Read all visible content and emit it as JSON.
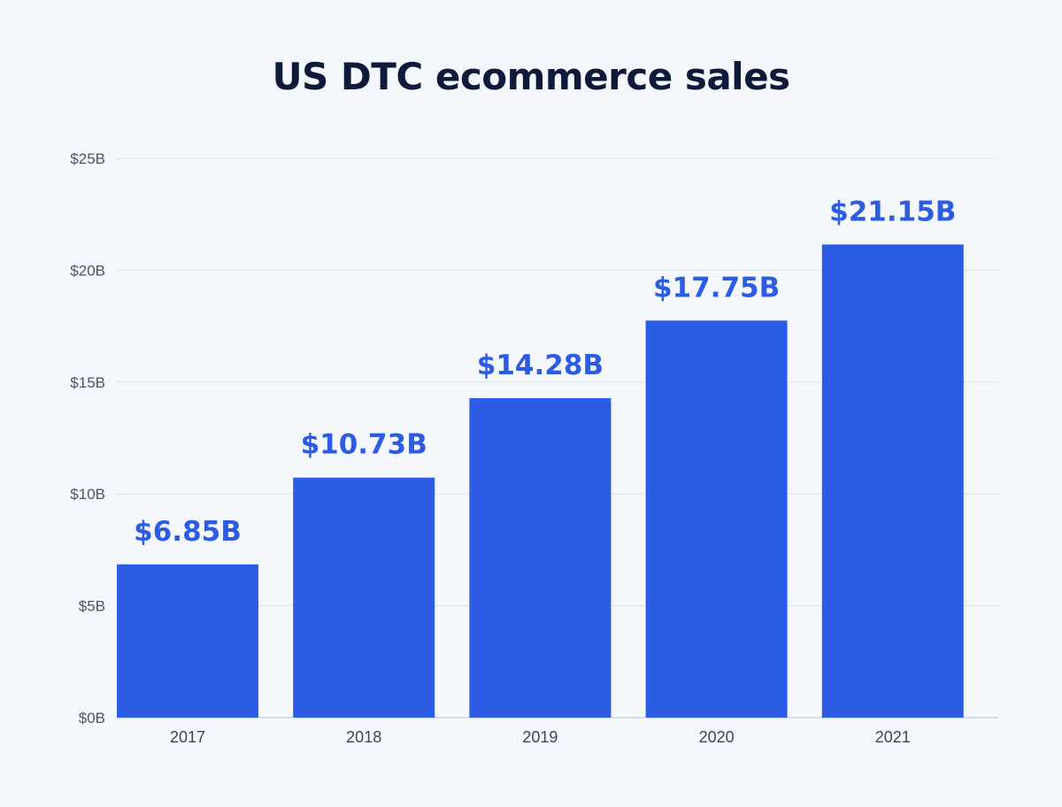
{
  "chart_data": {
    "type": "bar",
    "title": "US DTC ecommerce sales",
    "xlabel": "",
    "ylabel": "",
    "categories": [
      "2017",
      "2018",
      "2019",
      "2020",
      "2021"
    ],
    "values": [
      6.85,
      10.73,
      14.28,
      17.75,
      21.15
    ],
    "data_labels": [
      "$6.85B",
      "$10.73B",
      "$14.28B",
      "$17.75B",
      "$21.15B"
    ],
    "ylim": [
      0,
      25
    ],
    "yticks": [
      0,
      5,
      10,
      15,
      20,
      25
    ],
    "ytick_labels": [
      "$0B",
      "$5B",
      "$10B",
      "$15B",
      "$20B",
      "$25B"
    ],
    "grid": true,
    "legend": "none",
    "colors": {
      "bar": "#2c5ce3",
      "data_label": "#2c5ce3",
      "background": "#f4f8fd",
      "title": "#0f1a3a"
    }
  }
}
